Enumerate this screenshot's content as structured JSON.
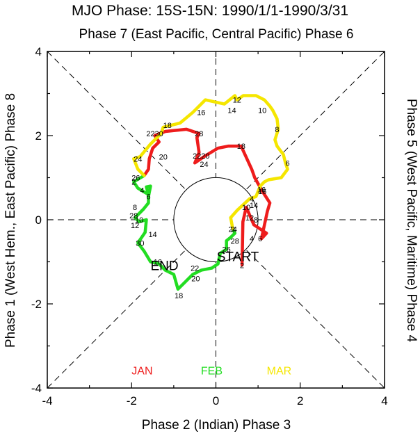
{
  "chart_data": {
    "type": "line",
    "title": "MJO Phase: 15S-15N: 1990/1/1-1990/3/31",
    "top_label": "Phase 7 (East Pacific, Central Pacific) Phase 6",
    "bottom_label": "Phase 2 (Indian) Phase 3",
    "left_label": "Phase 1 (West Hem., East Pacific) Phase 8",
    "right_label": "Phase 5 (West Pacific, Maritime) Phase 4",
    "xlim": [
      -4,
      4
    ],
    "ylim": [
      -4,
      4
    ],
    "x_ticks": [
      "-4",
      "-2",
      "0",
      "2",
      "4"
    ],
    "y_ticks": [
      "4",
      "2",
      "0",
      "-2",
      "-4"
    ],
    "start_label": "START",
    "end_label": "END",
    "legend": [
      {
        "name": "JAN",
        "color": "#ee1c1c"
      },
      {
        "name": "FEB",
        "color": "#22dd22"
      },
      {
        "name": "MAR",
        "color": "#f5e600"
      }
    ],
    "series": [
      {
        "name": "JAN",
        "color": "#ee1c1c",
        "points": [
          [
            0.62,
            -1.08
          ],
          [
            0.64,
            -0.05
          ],
          [
            0.72,
            0.3
          ],
          [
            0.9,
            -0.12
          ],
          [
            1.2,
            -0.32
          ],
          [
            1.08,
            -0.45
          ],
          [
            1.22,
            0.2
          ],
          [
            1.28,
            0.4
          ],
          [
            1.1,
            0.68
          ],
          [
            0.92,
            1.0
          ],
          [
            0.85,
            1.2
          ],
          [
            0.62,
            1.7
          ],
          [
            0.6,
            1.75
          ],
          [
            0.3,
            1.75
          ],
          [
            0.05,
            1.7
          ],
          [
            -0.25,
            1.52
          ],
          [
            -0.5,
            1.35
          ],
          [
            -0.4,
            1.6
          ],
          [
            -0.45,
            1.95
          ],
          [
            -0.4,
            2.05
          ],
          [
            -0.7,
            2.15
          ],
          [
            -1.2,
            2.1
          ],
          [
            -1.45,
            2.0
          ],
          [
            -1.35,
            1.85
          ],
          [
            -1.5,
            1.7
          ],
          [
            -1.58,
            1.45
          ],
          [
            -1.6,
            1.2
          ],
          [
            -1.7,
            1.05
          ]
        ],
        "labels": [
          {
            "text": "2",
            "x": 0.62,
            "y": -1.08
          },
          {
            "text": "4",
            "x": 0.85,
            "y": -0.45
          },
          {
            "text": "6",
            "x": 1.05,
            "y": -0.45
          },
          {
            "text": "8",
            "x": 0.95,
            "y": 0.0
          },
          {
            "text": "10",
            "x": 0.72,
            "y": 0.3
          },
          {
            "text": "12",
            "x": 0.8,
            "y": 0.05
          },
          {
            "text": "14",
            "x": 0.9,
            "y": 0.35
          },
          {
            "text": "16",
            "x": 1.1,
            "y": 0.68
          },
          {
            "text": "18",
            "x": 0.6,
            "y": 1.75
          },
          {
            "text": "20",
            "x": -0.25,
            "y": 1.52
          },
          {
            "text": "22",
            "x": -0.45,
            "y": 1.52
          },
          {
            "text": "24",
            "x": -0.28,
            "y": 1.32
          },
          {
            "text": "28",
            "x": -0.4,
            "y": 2.05
          },
          {
            "text": "30",
            "x": -1.35,
            "y": 2.05
          }
        ]
      },
      {
        "name": "FEB",
        "color": "#22dd22",
        "points": [
          [
            -1.7,
            1.05
          ],
          [
            -1.95,
            0.9
          ],
          [
            -1.85,
            0.75
          ],
          [
            -1.6,
            0.6
          ],
          [
            -1.65,
            0.78
          ],
          [
            -1.55,
            0.8
          ],
          [
            -1.6,
            0.55
          ],
          [
            -1.6,
            0.4
          ],
          [
            -1.72,
            0.25
          ],
          [
            -1.92,
            0.05
          ],
          [
            -1.82,
            -0.05
          ],
          [
            -1.65,
            0.0
          ],
          [
            -1.68,
            -0.3
          ],
          [
            -1.85,
            -0.55
          ],
          [
            -1.7,
            -0.75
          ],
          [
            -1.55,
            -1.0
          ],
          [
            -1.35,
            -1.05
          ],
          [
            -1.2,
            -1.2
          ],
          [
            -1.0,
            -1.3
          ],
          [
            -0.9,
            -1.65
          ],
          [
            -0.75,
            -1.5
          ],
          [
            -0.55,
            -1.3
          ],
          [
            -0.35,
            -1.2
          ],
          [
            -0.1,
            -1.15
          ],
          [
            0.05,
            -1.05
          ],
          [
            0.1,
            -0.8
          ],
          [
            0.25,
            -0.7
          ],
          [
            0.25,
            -0.5
          ],
          [
            0.35,
            -0.42
          ],
          [
            0.45,
            -0.32
          ],
          [
            0.4,
            -0.22
          ]
        ],
        "labels": [
          {
            "text": "2",
            "x": -1.95,
            "y": 0.9
          },
          {
            "text": "4",
            "x": -1.75,
            "y": 0.7
          },
          {
            "text": "6",
            "x": -1.6,
            "y": 0.55
          },
          {
            "text": "8",
            "x": -1.92,
            "y": 0.3
          },
          {
            "text": "10",
            "x": -1.82,
            "y": 0.0
          },
          {
            "text": "12",
            "x": -1.92,
            "y": -0.13
          },
          {
            "text": "14",
            "x": -1.5,
            "y": -0.35
          },
          {
            "text": "16",
            "x": -1.38,
            "y": -1.0
          },
          {
            "text": "18",
            "x": -0.88,
            "y": -1.8
          },
          {
            "text": "20",
            "x": -0.48,
            "y": -1.4
          },
          {
            "text": "22",
            "x": -0.5,
            "y": -1.15
          },
          {
            "text": "24",
            "x": 0.4,
            "y": -0.22
          },
          {
            "text": "26",
            "x": 0.25,
            "y": -0.7
          },
          {
            "text": "28",
            "x": 0.45,
            "y": -0.5
          }
        ]
      },
      {
        "name": "MAR",
        "color": "#f5e600",
        "points": [
          [
            0.4,
            -0.22
          ],
          [
            0.35,
            0.05
          ],
          [
            0.5,
            0.22
          ],
          [
            0.8,
            0.5
          ],
          [
            0.95,
            0.55
          ],
          [
            1.05,
            0.8
          ],
          [
            1.15,
            0.9
          ],
          [
            1.25,
            0.95
          ],
          [
            1.55,
            1.0
          ],
          [
            1.7,
            1.2
          ],
          [
            1.65,
            1.35
          ],
          [
            1.6,
            1.55
          ],
          [
            1.45,
            1.75
          ],
          [
            1.4,
            1.9
          ],
          [
            1.48,
            2.15
          ],
          [
            1.45,
            2.4
          ],
          [
            1.35,
            2.6
          ],
          [
            1.28,
            2.7
          ],
          [
            1.15,
            2.85
          ],
          [
            0.95,
            2.95
          ],
          [
            0.65,
            2.95
          ],
          [
            0.5,
            2.85
          ],
          [
            0.45,
            2.95
          ],
          [
            0.2,
            2.75
          ],
          [
            -0.25,
            2.85
          ],
          [
            -0.55,
            2.55
          ],
          [
            -0.85,
            2.3
          ],
          [
            -1.05,
            2.25
          ],
          [
            -1.25,
            2.2
          ],
          [
            -1.3,
            2.05
          ],
          [
            -1.55,
            1.8
          ],
          [
            -1.8,
            1.5
          ],
          [
            -1.95,
            1.45
          ],
          [
            -1.85,
            1.2
          ],
          [
            -1.7,
            1.05
          ]
        ],
        "labels": [
          {
            "text": "2",
            "x": 0.4,
            "y": -0.22
          },
          {
            "text": "4",
            "x": 0.85,
            "y": 0.5
          },
          {
            "text": "16",
            "x": 1.08,
            "y": 0.72
          },
          {
            "text": "6",
            "x": 1.7,
            "y": 1.35
          },
          {
            "text": "8",
            "x": 1.45,
            "y": 2.15
          },
          {
            "text": "10",
            "x": 1.1,
            "y": 2.6
          },
          {
            "text": "12",
            "x": 0.5,
            "y": 2.85
          },
          {
            "text": "14",
            "x": 0.38,
            "y": 2.6
          },
          {
            "text": "16",
            "x": -0.35,
            "y": 2.55
          },
          {
            "text": "18",
            "x": -1.15,
            "y": 2.25
          },
          {
            "text": "20",
            "x": -1.25,
            "y": 1.5
          },
          {
            "text": "22",
            "x": -1.55,
            "y": 2.05
          },
          {
            "text": "24",
            "x": -1.85,
            "y": 1.45
          },
          {
            "text": "26",
            "x": -1.9,
            "y": 1.0
          },
          {
            "text": "28",
            "x": -1.95,
            "y": 0.1
          },
          {
            "text": "30",
            "x": -1.8,
            "y": -0.55
          }
        ]
      }
    ]
  }
}
